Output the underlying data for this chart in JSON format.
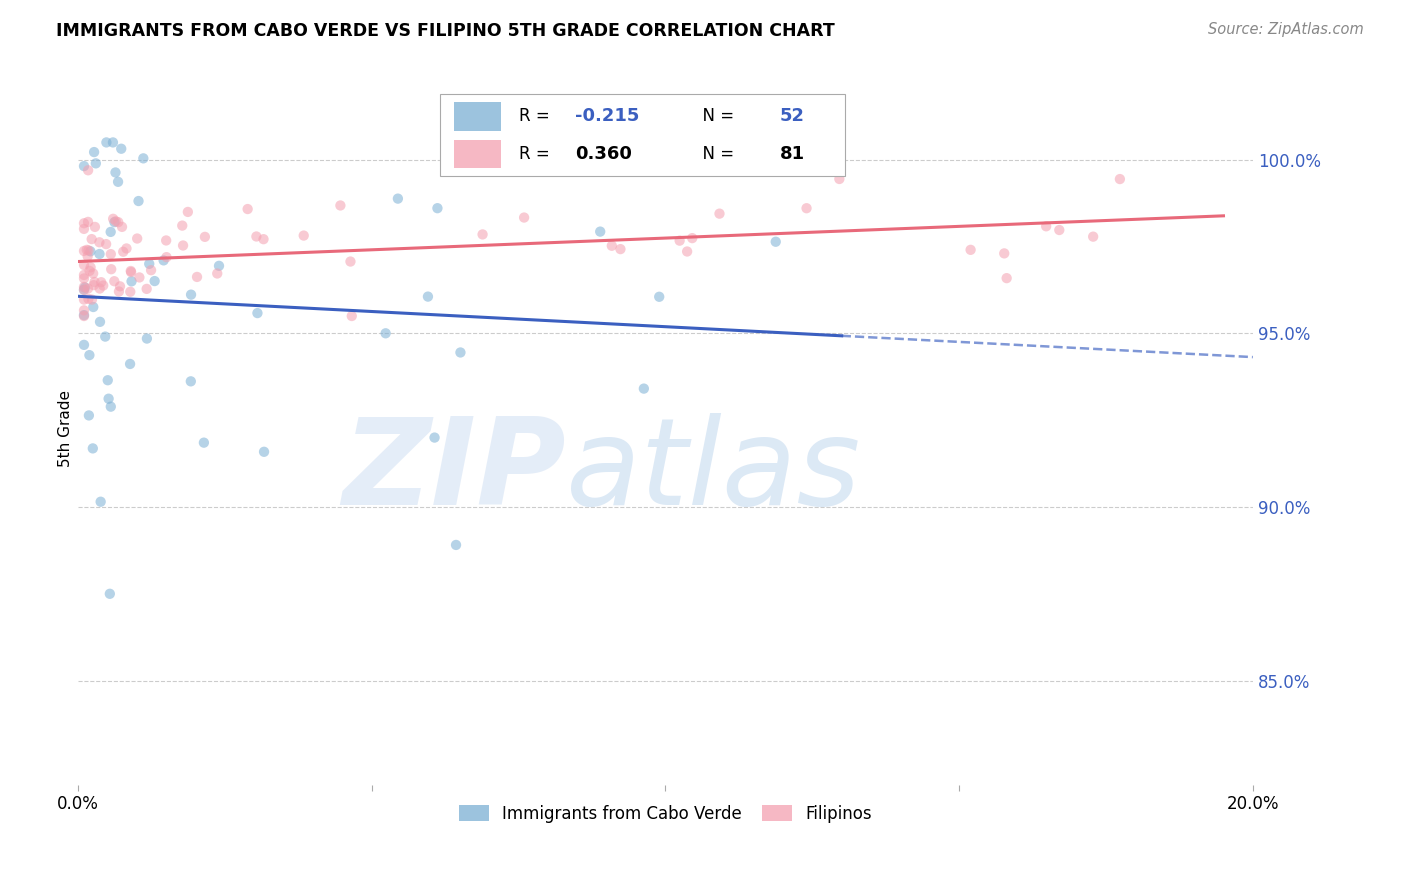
{
  "title": "IMMIGRANTS FROM CABO VERDE VS FILIPINO 5TH GRADE CORRELATION CHART",
  "source": "Source: ZipAtlas.com",
  "ylabel": "5th Grade",
  "y_tick_labels": [
    "100.0%",
    "95.0%",
    "90.0%",
    "85.0%"
  ],
  "y_tick_values": [
    1.0,
    0.95,
    0.9,
    0.85
  ],
  "x_range": [
    0.0,
    0.2
  ],
  "y_range": [
    0.82,
    1.025
  ],
  "cabo_verde_R": -0.215,
  "cabo_verde_N": 52,
  "filipino_R": 0.36,
  "filipino_N": 81,
  "cabo_verde_color": "#7BAFD4",
  "filipino_color": "#F4A0B0",
  "cabo_verde_line_color": "#3B5FC0",
  "filipino_line_color": "#E8697A",
  "legend_label_cabo": "Immigrants from Cabo Verde",
  "legend_label_filipino": "Filipinos",
  "watermark_zip": "ZIP",
  "watermark_atlas": "atlas",
  "background_color": "#ffffff",
  "grid_color": "#cccccc",
  "cabo_verde_line_solid_end": 0.13,
  "cabo_verde_line_dash_end": 0.2,
  "filipino_line_end": 0.195,
  "scatter_size": 55,
  "scatter_alpha": 0.55
}
